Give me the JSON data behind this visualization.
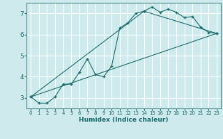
{
  "xlabel": "Humidex (Indice chaleur)",
  "ylabel": "",
  "bg_color": "#ceeaec",
  "grid_color": "#ffffff",
  "line_color": "#1a6b6b",
  "xlim": [
    -0.5,
    23.5
  ],
  "ylim": [
    2.5,
    7.5
  ],
  "yticks": [
    3,
    4,
    5,
    6,
    7
  ],
  "xticks": [
    0,
    1,
    2,
    3,
    4,
    5,
    6,
    7,
    8,
    9,
    10,
    11,
    12,
    13,
    14,
    15,
    16,
    17,
    18,
    19,
    20,
    21,
    22,
    23
  ],
  "series1_x": [
    0,
    1,
    2,
    3,
    4,
    5,
    6,
    7,
    8,
    9,
    10,
    11,
    12,
    13,
    14,
    15,
    16,
    17,
    18,
    19,
    20,
    21,
    22,
    23
  ],
  "series1_y": [
    3.05,
    2.75,
    2.75,
    3.05,
    3.65,
    3.65,
    4.2,
    4.85,
    4.1,
    4.0,
    4.5,
    6.3,
    6.55,
    7.0,
    7.1,
    7.3,
    7.05,
    7.2,
    7.05,
    6.8,
    6.85,
    6.35,
    6.1,
    6.05
  ],
  "series2_x": [
    0,
    14,
    23
  ],
  "series2_y": [
    3.05,
    7.1,
    6.05
  ],
  "series3_x": [
    0,
    23
  ],
  "series3_y": [
    3.05,
    6.05
  ]
}
